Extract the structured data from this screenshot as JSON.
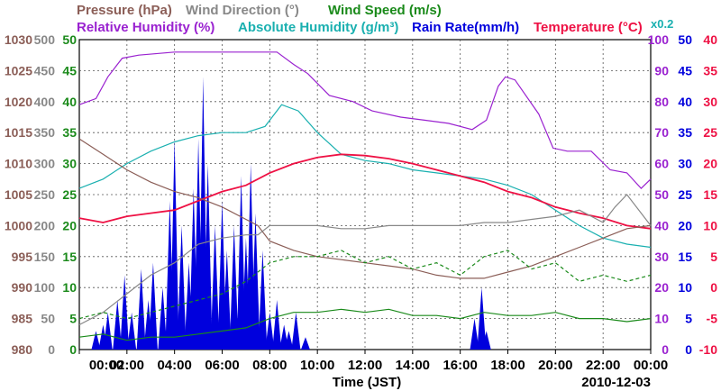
{
  "chart_data": {
    "type": "line",
    "date": "2010-12-03",
    "xlabel": "Time (JST)",
    "x_ticks": [
      "00:00",
      "02:00",
      "04:00",
      "06:00",
      "08:00",
      "10:00",
      "12:00",
      "14:00",
      "16:00",
      "18:00",
      "20:00",
      "22:00",
      "00:00"
    ],
    "x_range_hours": [
      0,
      24
    ],
    "legend_row1": [
      {
        "text": "Pressure (hPa)",
        "color": "#8b5e57"
      },
      {
        "text": "Wind Direction (°)",
        "color": "#888888"
      },
      {
        "text": "Wind Speed (m/s)",
        "color": "#1a8a1a"
      }
    ],
    "legend_row2": [
      {
        "text": "Relative Humidity (%)",
        "color": "#9a22d0"
      },
      {
        "text": "Absolute Humidity (g/m³)",
        "color": "#1ab0b0"
      },
      {
        "text": "Rain Rate(mm/h)",
        "color": "#0000dd"
      },
      {
        "text": "Temperature (°C)",
        "color": "#ee1144"
      }
    ],
    "scale_note": "x0.2",
    "axes": {
      "pressure": {
        "color": "#8b5e57",
        "range": [
          980,
          1030
        ],
        "ticks": [
          "1030",
          "1025",
          "1020",
          "1015",
          "1010",
          "1005",
          "1000",
          "995",
          "990",
          "985",
          "980"
        ]
      },
      "wind_direction": {
        "color": "#888888",
        "range": [
          0,
          500
        ],
        "ticks": [
          "500",
          "450",
          "400",
          "350",
          "300",
          "250",
          "200",
          "150",
          "100",
          "50",
          "0"
        ]
      },
      "wind_speed": {
        "color": "#1a8a1a",
        "range": [
          0,
          50
        ],
        "ticks": [
          "50",
          "45",
          "40",
          "35",
          "30",
          "25",
          "20",
          "15",
          "10",
          "5",
          "0"
        ]
      },
      "relative_humidity": {
        "color": "#9a22d0",
        "range": [
          0,
          100
        ],
        "ticks": [
          "100",
          "90",
          "80",
          "70",
          "60",
          "50",
          "40",
          "30",
          "20",
          "10",
          "0"
        ]
      },
      "rain_rate": {
        "color": "#0000dd",
        "range": [
          0,
          50
        ],
        "ticks": [
          "50",
          "45",
          "40",
          "35",
          "30",
          "25",
          "20",
          "15",
          "10",
          "5",
          "0"
        ]
      },
      "temperature": {
        "color": "#ee1144",
        "range": [
          -10,
          40
        ],
        "ticks": [
          "40",
          "35",
          "30",
          "25",
          "20",
          "15",
          "10",
          "5",
          "0",
          "-5",
          "-10"
        ]
      }
    },
    "series": [
      {
        "name": "Relative Humidity",
        "axis": "relative_humidity",
        "color": "#9a22d0",
        "x": [
          0,
          0.7,
          1.2,
          1.8,
          2.5,
          4,
          6,
          7,
          8.3,
          9,
          9.6,
          10.5,
          11.5,
          12.3,
          13.5,
          14.5,
          15.5,
          16.5,
          17.1,
          17.6,
          17.9,
          18.3,
          19.3,
          19.9,
          20.5,
          21.5,
          22.3,
          23,
          23.6,
          24
        ],
        "y": [
          79,
          81,
          88,
          94,
          95,
          96,
          96,
          96,
          96,
          92,
          89,
          82,
          80,
          77,
          75,
          74,
          73,
          71,
          74,
          85,
          88,
          87,
          76,
          65,
          64,
          64,
          58,
          57,
          52,
          55
        ]
      },
      {
        "name": "Absolute Humidity (x0.2)",
        "axis": "relative_humidity",
        "color": "#1ab0b0",
        "x": [
          0,
          1,
          2,
          3,
          4,
          5,
          6,
          7,
          7.8,
          8.5,
          9.2,
          10,
          11,
          12,
          13,
          14,
          15,
          16,
          17,
          17.5,
          18,
          19,
          20,
          21,
          22,
          23,
          24
        ],
        "y": [
          52,
          55,
          60,
          64,
          67,
          69,
          70,
          70,
          72,
          79,
          77,
          70,
          63,
          61,
          60,
          58,
          57,
          56,
          55,
          54,
          53,
          50,
          45,
          40,
          36,
          34,
          33
        ]
      },
      {
        "name": "Temperature",
        "axis": "temperature",
        "color": "#ee1144",
        "x": [
          0,
          1,
          2,
          3,
          4,
          5,
          6,
          7,
          8,
          9,
          10,
          11,
          12,
          13,
          14,
          15,
          16,
          17,
          18,
          19,
          20,
          21,
          22,
          23,
          24
        ],
        "y": [
          11.2,
          10.5,
          11.5,
          12,
          12.5,
          14,
          15.5,
          16.5,
          18.5,
          20,
          21,
          21.5,
          21.3,
          20.8,
          20,
          19,
          18,
          17,
          15.5,
          14.5,
          13,
          12,
          11.2,
          10,
          9.5
        ]
      },
      {
        "name": "Pressure",
        "axis": "pressure",
        "color": "#8b5e57",
        "x": [
          0,
          1,
          2,
          3,
          4,
          5,
          6,
          7,
          7.5,
          8,
          9,
          10,
          11,
          12,
          13,
          14,
          15,
          16,
          17,
          18,
          19,
          20,
          21,
          22,
          23,
          24
        ],
        "y": [
          1014,
          1011.5,
          1009,
          1007,
          1005.5,
          1004.5,
          1003,
          1001,
          1000,
          997.5,
          996,
          995,
          994.5,
          994,
          993.5,
          993,
          992,
          991.5,
          991.5,
          992.5,
          993.5,
          995,
          996.5,
          998,
          999.5,
          1000
        ]
      },
      {
        "name": "Wind Direction",
        "axis": "wind_direction",
        "color": "#888888",
        "x": [
          0,
          1,
          2,
          3,
          4,
          5,
          6,
          7,
          7.5,
          8,
          9,
          10,
          11,
          12,
          13,
          14,
          15,
          16,
          17,
          18,
          19,
          20,
          21,
          22,
          22.5,
          23,
          24
        ],
        "y": [
          40,
          60,
          90,
          120,
          140,
          170,
          180,
          185,
          185,
          200,
          200,
          200,
          195,
          195,
          200,
          200,
          200,
          200,
          205,
          205,
          210,
          215,
          225,
          205,
          230,
          250,
          200
        ]
      },
      {
        "name": "Wind Speed",
        "axis": "wind_speed",
        "color": "#1a8a1a",
        "x": [
          0,
          1,
          2,
          3,
          4,
          5,
          6,
          7,
          8,
          9,
          10,
          11,
          12,
          13,
          14,
          15,
          16,
          17,
          18,
          19,
          20,
          21,
          22,
          23,
          24
        ],
        "y": [
          2,
          2.5,
          1.5,
          2,
          2,
          2.5,
          3,
          3.5,
          5,
          6,
          6,
          6.5,
          6,
          6.5,
          5.5,
          5.5,
          5,
          6,
          5.5,
          5.5,
          6,
          5,
          5,
          4.5,
          5
        ]
      },
      {
        "name": "Wind Speed (gust)",
        "axis": "wind_speed",
        "color": "#1a8a1a",
        "dashed": true,
        "x": [
          0,
          1,
          2,
          3,
          4,
          5,
          6,
          7,
          8,
          9,
          10,
          11,
          12,
          13,
          14,
          15,
          16,
          17,
          18,
          19,
          20,
          21,
          22,
          23,
          24
        ],
        "y": [
          5,
          6,
          5,
          6,
          7,
          8,
          9,
          11,
          14,
          15,
          15,
          16,
          14,
          15,
          13,
          14,
          12,
          15,
          16,
          13,
          14,
          11,
          12,
          11,
          12
        ]
      }
    ],
    "rain": {
      "name": "Rain Rate",
      "axis": "rain_rate",
      "color": "#0000dd",
      "x": [
        0.7,
        1.0,
        1.2,
        1.6,
        1.9,
        2.2,
        2.6,
        2.9,
        3.1,
        3.5,
        3.8,
        4.0,
        4.3,
        4.6,
        4.8,
        5.0,
        5.2,
        5.4,
        5.7,
        6.0,
        6.2,
        6.5,
        6.8,
        7.0,
        7.2,
        7.4,
        7.7,
        8.0,
        8.3,
        8.6,
        8.8,
        9.1,
        9.5,
        16.6,
        16.9,
        17.1
      ],
      "y": [
        3,
        4,
        6,
        8,
        12,
        6,
        13,
        8,
        14,
        10,
        24,
        34,
        20,
        14,
        26,
        34,
        44,
        30,
        20,
        24,
        16,
        20,
        28,
        18,
        30,
        22,
        16,
        6,
        8,
        4,
        3,
        6,
        2,
        5,
        10,
        3
      ]
    }
  }
}
